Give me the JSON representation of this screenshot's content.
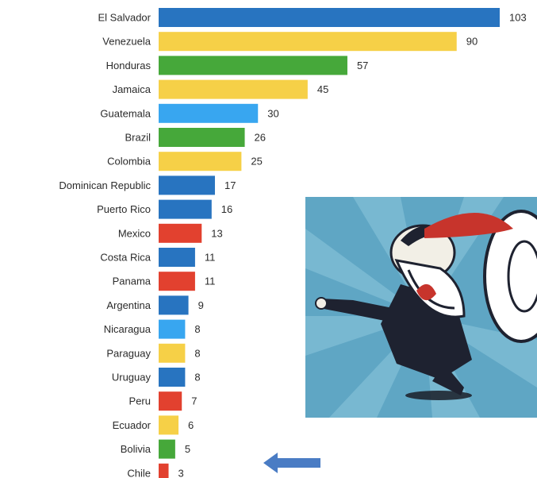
{
  "chart_data": {
    "type": "bar",
    "orientation": "horizontal",
    "categories": [
      "El Salvador",
      "Venezuela",
      "Honduras",
      "Jamaica",
      "Guatemala",
      "Brazil",
      "Colombia",
      "Dominican Republic",
      "Puerto Rico",
      "Mexico",
      "Costa Rica",
      "Panama",
      "Argentina",
      "Nicaragua",
      "Paraguay",
      "Uruguay",
      "Peru",
      "Ecuador",
      "Bolivia",
      "Chile"
    ],
    "values": [
      103,
      90,
      57,
      45,
      30,
      26,
      25,
      17,
      16,
      13,
      11,
      11,
      9,
      8,
      8,
      8,
      7,
      6,
      5,
      3
    ],
    "colors": [
      "#2874c0",
      "#f6d047",
      "#46a83a",
      "#f6d047",
      "#38a6f0",
      "#46a83a",
      "#f6d047",
      "#2874c0",
      "#2874c0",
      "#e2412f",
      "#2874c0",
      "#e2412f",
      "#2874c0",
      "#38a6f0",
      "#f6d047",
      "#2874c0",
      "#e2412f",
      "#f6d047",
      "#46a83a",
      "#e2412f"
    ],
    "title": "",
    "xlabel": "",
    "ylabel": "",
    "xlim": [
      0,
      103
    ],
    "grid": false,
    "legend": "none"
  },
  "annotations": {
    "arrow_color": "#4a7cc4",
    "arrow_direction": "left",
    "arrow_target": "Chile"
  },
  "illustration": {
    "subject": "cartoon businessman shouting into a megaphone",
    "colors": {
      "background": "#5fa6c4",
      "ray": "#8cc6dc",
      "suit": "#1e2230",
      "megaphone_rim": "#c7342c"
    }
  }
}
